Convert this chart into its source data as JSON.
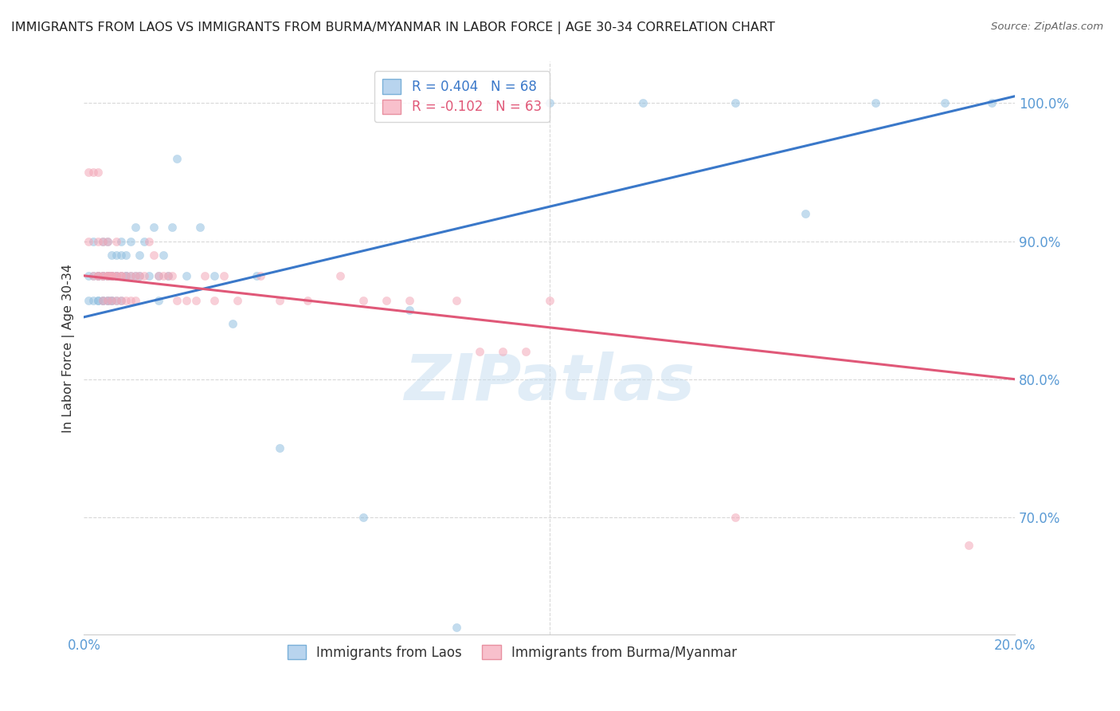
{
  "title": "IMMIGRANTS FROM LAOS VS IMMIGRANTS FROM BURMA/MYANMAR IN LABOR FORCE | AGE 30-34 CORRELATION CHART",
  "source": "Source: ZipAtlas.com",
  "ylabel": "In Labor Force | Age 30-34",
  "x_lim": [
    0.0,
    0.2
  ],
  "y_lim": [
    0.615,
    1.03
  ],
  "y_ticks": [
    0.7,
    0.8,
    0.9,
    1.0
  ],
  "y_tick_labels": [
    "70.0%",
    "80.0%",
    "90.0%",
    "100.0%"
  ],
  "x_ticks": [
    0.0,
    0.1,
    0.2
  ],
  "x_tick_labels": [
    "0.0%",
    "",
    "20.0%"
  ],
  "legend_r_laos": "R = 0.404",
  "legend_n_laos": "N = 68",
  "legend_r_burma": "R = -0.102",
  "legend_n_burma": "N = 63",
  "legend_label_laos": "Immigrants from Laos",
  "legend_label_burma": "Immigrants from Burma/Myanmar",
  "color_laos": "#92c0e0",
  "color_burma": "#f4a8b8",
  "color_line_laos": "#3a78c9",
  "color_line_burma": "#e05878",
  "color_axis": "#5b9bd5",
  "color_grid": "#d8d8d8",
  "color_title": "#222222",
  "color_source": "#666666",
  "color_watermark": "#c5ddf0",
  "watermark_text": "ZIPatlas",
  "scatter_size": 55,
  "scatter_alpha": 0.55,
  "line_width": 2.2,
  "series_laos_x": [
    0.001,
    0.001,
    0.002,
    0.002,
    0.002,
    0.003,
    0.003,
    0.003,
    0.003,
    0.004,
    0.004,
    0.004,
    0.004,
    0.004,
    0.005,
    0.005,
    0.005,
    0.005,
    0.005,
    0.005,
    0.006,
    0.006,
    0.006,
    0.006,
    0.006,
    0.006,
    0.007,
    0.007,
    0.007,
    0.007,
    0.008,
    0.008,
    0.008,
    0.008,
    0.009,
    0.009,
    0.009,
    0.01,
    0.01,
    0.011,
    0.011,
    0.012,
    0.012,
    0.013,
    0.014,
    0.015,
    0.016,
    0.016,
    0.017,
    0.018,
    0.019,
    0.02,
    0.022,
    0.025,
    0.028,
    0.032,
    0.037,
    0.042,
    0.06,
    0.07,
    0.08,
    0.1,
    0.12,
    0.14,
    0.155,
    0.17,
    0.185,
    0.195
  ],
  "series_laos_y": [
    0.857,
    0.875,
    0.857,
    0.875,
    0.9,
    0.857,
    0.875,
    0.857,
    0.875,
    0.857,
    0.875,
    0.875,
    0.9,
    0.857,
    0.857,
    0.875,
    0.875,
    0.9,
    0.857,
    0.875,
    0.857,
    0.875,
    0.875,
    0.89,
    0.857,
    0.875,
    0.857,
    0.875,
    0.875,
    0.89,
    0.857,
    0.875,
    0.89,
    0.9,
    0.875,
    0.875,
    0.89,
    0.875,
    0.9,
    0.875,
    0.91,
    0.875,
    0.89,
    0.9,
    0.875,
    0.91,
    0.857,
    0.875,
    0.89,
    0.875,
    0.91,
    0.96,
    0.875,
    0.91,
    0.875,
    0.84,
    0.875,
    0.75,
    0.7,
    0.85,
    0.62,
    1.0,
    1.0,
    1.0,
    0.92,
    1.0,
    1.0,
    1.0
  ],
  "series_burma_x": [
    0.001,
    0.001,
    0.002,
    0.002,
    0.003,
    0.003,
    0.003,
    0.003,
    0.004,
    0.004,
    0.004,
    0.004,
    0.005,
    0.005,
    0.005,
    0.005,
    0.005,
    0.006,
    0.006,
    0.006,
    0.006,
    0.007,
    0.007,
    0.007,
    0.007,
    0.008,
    0.008,
    0.008,
    0.009,
    0.009,
    0.01,
    0.01,
    0.011,
    0.011,
    0.012,
    0.013,
    0.014,
    0.015,
    0.016,
    0.017,
    0.018,
    0.019,
    0.02,
    0.022,
    0.024,
    0.026,
    0.028,
    0.03,
    0.033,
    0.038,
    0.042,
    0.048,
    0.055,
    0.06,
    0.065,
    0.07,
    0.08,
    0.085,
    0.09,
    0.095,
    0.1,
    0.14,
    0.19
  ],
  "series_burma_y": [
    0.9,
    0.95,
    0.95,
    0.875,
    0.9,
    0.875,
    0.875,
    0.95,
    0.9,
    0.875,
    0.875,
    0.857,
    0.875,
    0.875,
    0.857,
    0.875,
    0.9,
    0.875,
    0.875,
    0.857,
    0.875,
    0.9,
    0.875,
    0.875,
    0.857,
    0.875,
    0.875,
    0.857,
    0.875,
    0.857,
    0.857,
    0.875,
    0.875,
    0.857,
    0.875,
    0.875,
    0.9,
    0.89,
    0.875,
    0.875,
    0.875,
    0.875,
    0.857,
    0.857,
    0.857,
    0.875,
    0.857,
    0.875,
    0.857,
    0.875,
    0.857,
    0.857,
    0.875,
    0.857,
    0.857,
    0.857,
    0.857,
    0.82,
    0.82,
    0.82,
    0.857,
    0.7,
    0.68
  ],
  "trend_laos_x0": 0.0,
  "trend_laos_y0": 0.845,
  "trend_laos_x1": 0.2,
  "trend_laos_y1": 1.005,
  "trend_burma_x0": 0.0,
  "trend_burma_y0": 0.875,
  "trend_burma_x1": 0.2,
  "trend_burma_y1": 0.8
}
